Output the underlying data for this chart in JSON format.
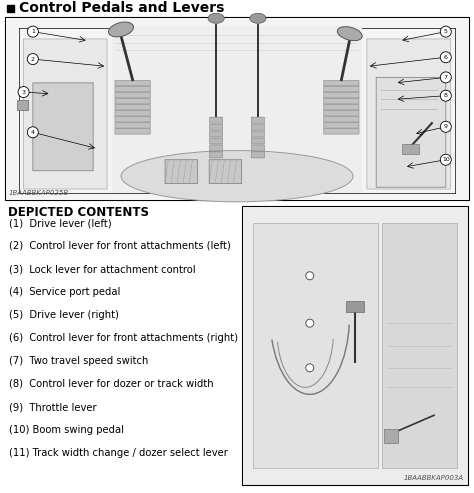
{
  "title": "Control Pedals and Levers",
  "bg_color": "#ffffff",
  "main_diagram_code_text": "1BAABBKAP025B",
  "secondary_diagram_code_text": "1BAABBKAP003A",
  "depicted_contents_title": "DEPICTED CONTENTS",
  "items": [
    "(1)  Drive lever (left)",
    "(2)  Control lever for front attachments (left)",
    "(3)  Lock lever for attachment control",
    "(4)  Service port pedal",
    "(5)  Drive lever (right)",
    "(6)  Control lever for front attachments (right)",
    "(7)  Two travel speed switch",
    "(8)  Control lever for dozer or track width",
    "(9)  Throttle lever",
    "(10) Boom swing pedal",
    "(11) Track width change / dozer select lever"
  ],
  "callouts": [
    {
      "label": "1",
      "lrx": 0.06,
      "lry": 0.92,
      "arx": 0.18,
      "ary": 0.87
    },
    {
      "label": "2",
      "lrx": 0.06,
      "lry": 0.77,
      "arx": 0.22,
      "ary": 0.73
    },
    {
      "label": "3",
      "lrx": 0.04,
      "lry": 0.59,
      "arx": 0.1,
      "ary": 0.58
    },
    {
      "label": "4",
      "lrx": 0.06,
      "lry": 0.37,
      "arx": 0.2,
      "ary": 0.28
    },
    {
      "label": "5",
      "lrx": 0.95,
      "lry": 0.92,
      "arx": 0.85,
      "ary": 0.87
    },
    {
      "label": "6",
      "lrx": 0.95,
      "lry": 0.78,
      "arx": 0.78,
      "ary": 0.73
    },
    {
      "label": "7",
      "lrx": 0.95,
      "lry": 0.67,
      "arx": 0.84,
      "ary": 0.64
    },
    {
      "label": "8",
      "lrx": 0.95,
      "lry": 0.57,
      "arx": 0.84,
      "ary": 0.55
    },
    {
      "label": "9",
      "lrx": 0.95,
      "lry": 0.4,
      "arx": 0.88,
      "ary": 0.36
    },
    {
      "label": "10",
      "lrx": 0.95,
      "lry": 0.22,
      "arx": 0.86,
      "ary": 0.18
    }
  ],
  "font_size_title": 10,
  "font_size_items": 7.2,
  "font_size_depicted": 8.5,
  "font_size_code": 5
}
